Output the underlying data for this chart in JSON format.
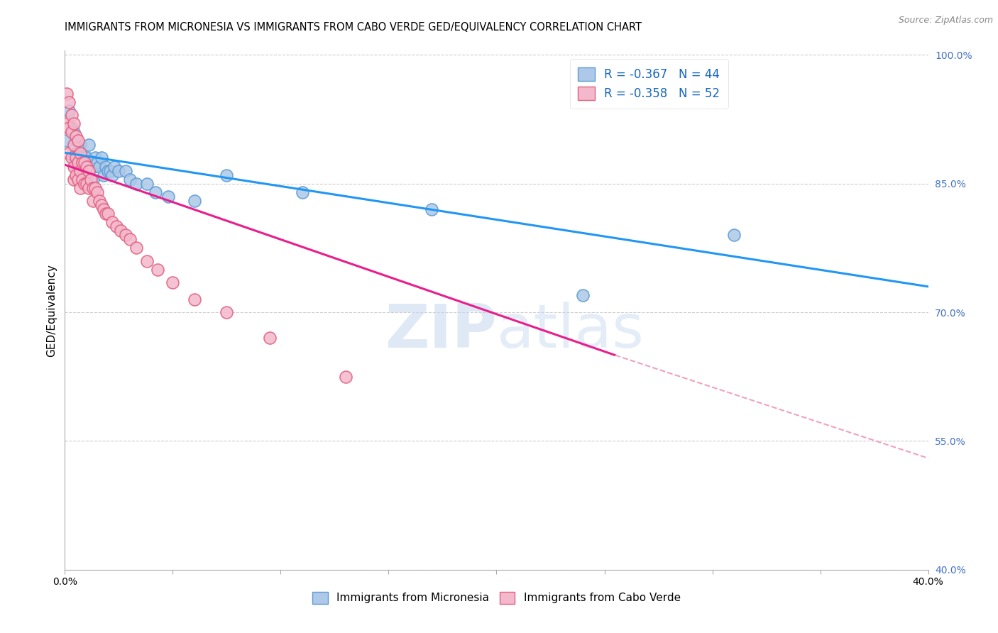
{
  "title": "IMMIGRANTS FROM MICRONESIA VS IMMIGRANTS FROM CABO VERDE GED/EQUIVALENCY CORRELATION CHART",
  "source": "Source: ZipAtlas.com",
  "ylabel": "GED/Equivalency",
  "xlim": [
    0.0,
    0.4
  ],
  "ylim": [
    0.4,
    1.005
  ],
  "xticks": [
    0.0,
    0.05,
    0.1,
    0.15,
    0.2,
    0.25,
    0.3,
    0.35,
    0.4
  ],
  "ytick_vals": [
    0.4,
    0.55,
    0.7,
    0.85,
    1.0
  ],
  "ytick_labels": [
    "40.0%",
    "55.0%",
    "70.0%",
    "85.0%",
    "100.0%"
  ],
  "xtick_labels": [
    "0.0%",
    "",
    "",
    "",
    "",
    "",
    "",
    "",
    "40.0%"
  ],
  "micronesia": {
    "name": "Immigrants from Micronesia",
    "face_color": "#adc8e8",
    "edge_color": "#5b9bd5",
    "R": -0.367,
    "N": 44,
    "x": [
      0.001,
      0.002,
      0.003,
      0.004,
      0.004,
      0.005,
      0.005,
      0.005,
      0.006,
      0.006,
      0.007,
      0.007,
      0.008,
      0.009,
      0.009,
      0.01,
      0.01,
      0.011,
      0.012,
      0.013,
      0.013,
      0.014,
      0.015,
      0.016,
      0.017,
      0.018,
      0.019,
      0.02,
      0.021,
      0.022,
      0.023,
      0.025,
      0.028,
      0.03,
      0.033,
      0.038,
      0.042,
      0.048,
      0.06,
      0.075,
      0.11,
      0.17,
      0.24,
      0.31
    ],
    "y": [
      0.9,
      0.935,
      0.915,
      0.91,
      0.88,
      0.9,
      0.87,
      0.885,
      0.885,
      0.86,
      0.895,
      0.87,
      0.87,
      0.88,
      0.86,
      0.88,
      0.86,
      0.895,
      0.87,
      0.87,
      0.855,
      0.88,
      0.875,
      0.87,
      0.88,
      0.86,
      0.87,
      0.865,
      0.865,
      0.86,
      0.87,
      0.865,
      0.865,
      0.855,
      0.85,
      0.85,
      0.84,
      0.835,
      0.83,
      0.86,
      0.84,
      0.82,
      0.72,
      0.79
    ]
  },
  "caboverde": {
    "name": "Immigrants from Cabo Verde",
    "face_color": "#f4b8cc",
    "edge_color": "#e06080",
    "R": -0.358,
    "N": 52,
    "x": [
      0.001,
      0.001,
      0.002,
      0.002,
      0.002,
      0.003,
      0.003,
      0.003,
      0.004,
      0.004,
      0.004,
      0.004,
      0.005,
      0.005,
      0.005,
      0.006,
      0.006,
      0.006,
      0.007,
      0.007,
      0.007,
      0.008,
      0.008,
      0.009,
      0.009,
      0.01,
      0.01,
      0.011,
      0.011,
      0.012,
      0.013,
      0.013,
      0.014,
      0.015,
      0.016,
      0.017,
      0.018,
      0.019,
      0.02,
      0.022,
      0.024,
      0.026,
      0.028,
      0.03,
      0.033,
      0.038,
      0.043,
      0.05,
      0.06,
      0.075,
      0.095,
      0.13
    ],
    "y": [
      0.955,
      0.92,
      0.945,
      0.915,
      0.885,
      0.93,
      0.91,
      0.88,
      0.92,
      0.895,
      0.87,
      0.855,
      0.905,
      0.88,
      0.86,
      0.9,
      0.875,
      0.855,
      0.885,
      0.865,
      0.845,
      0.875,
      0.855,
      0.875,
      0.85,
      0.87,
      0.85,
      0.865,
      0.845,
      0.855,
      0.845,
      0.83,
      0.845,
      0.84,
      0.83,
      0.825,
      0.82,
      0.815,
      0.815,
      0.805,
      0.8,
      0.795,
      0.79,
      0.785,
      0.775,
      0.76,
      0.75,
      0.735,
      0.715,
      0.7,
      0.67,
      0.625
    ]
  },
  "trend_blue": {
    "x": [
      0.0,
      0.4
    ],
    "y": [
      0.886,
      0.73
    ]
  },
  "trend_pink_solid": {
    "x": [
      0.0,
      0.255
    ],
    "y": [
      0.872,
      0.65
    ]
  },
  "trend_pink_dashed": {
    "x": [
      0.255,
      0.4
    ],
    "y": [
      0.65,
      0.53
    ]
  },
  "watermark_line1": "ZIP",
  "watermark_line2": "atlas",
  "bg_color": "#ffffff",
  "grid_color": "#cccccc",
  "right_tick_color": "#4472c4",
  "title_fontsize": 10.5,
  "tick_fontsize": 10
}
